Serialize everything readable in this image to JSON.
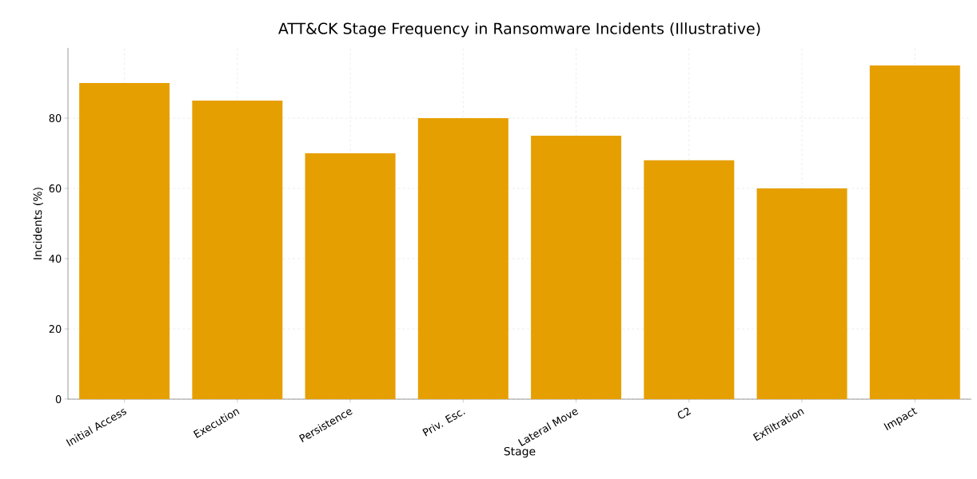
{
  "chart_data": {
    "type": "bar",
    "title": "ATT&CK Stage Frequency in Ransomware Incidents (Illustrative)",
    "xlabel": "Stage",
    "ylabel": "Incidents (%)",
    "categories": [
      "Initial Access",
      "Execution",
      "Persistence",
      "Priv. Esc.",
      "Lateral Move",
      "C2",
      "Exfiltration",
      "Impact"
    ],
    "values": [
      90,
      85,
      70,
      80,
      75,
      68,
      60,
      95
    ],
    "color": "#e69f00",
    "ylim": [
      0,
      100
    ],
    "yticks": [
      0,
      20,
      40,
      60,
      80
    ],
    "grid": true
  }
}
